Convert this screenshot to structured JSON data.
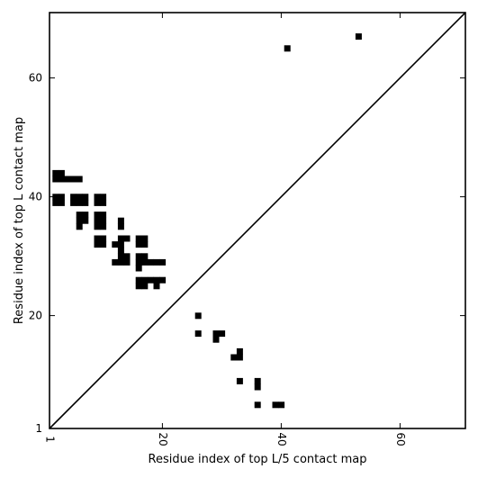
{
  "chart_data": {
    "type": "heatmap",
    "title": "",
    "xlabel": "Residue index of top L/5 contact map",
    "ylabel": "Residue index of top L contact map",
    "xlim": [
      1,
      71
    ],
    "ylim": [
      1,
      71
    ],
    "xticks": [
      1,
      20,
      40,
      60
    ],
    "yticks": [
      1,
      20,
      40,
      60
    ],
    "diagonal": true,
    "grid": false,
    "color": "#000000",
    "upper_triangle_cells": [
      [
        41,
        65
      ],
      [
        53,
        67
      ],
      [
        2,
        43
      ],
      [
        2,
        44
      ],
      [
        3,
        43
      ],
      [
        3,
        44
      ],
      [
        4,
        43
      ],
      [
        5,
        43
      ],
      [
        6,
        43
      ],
      [
        2,
        39
      ],
      [
        2,
        40
      ],
      [
        3,
        39
      ],
      [
        3,
        40
      ],
      [
        5,
        39
      ],
      [
        5,
        40
      ],
      [
        6,
        39
      ],
      [
        6,
        40
      ],
      [
        7,
        39
      ],
      [
        7,
        40
      ],
      [
        9,
        39
      ],
      [
        9,
        40
      ],
      [
        10,
        39
      ],
      [
        10,
        40
      ],
      [
        6,
        36
      ],
      [
        6,
        37
      ],
      [
        7,
        36
      ],
      [
        7,
        37
      ],
      [
        6,
        35
      ],
      [
        9,
        36
      ],
      [
        9,
        37
      ],
      [
        10,
        36
      ],
      [
        10,
        37
      ],
      [
        9,
        35
      ],
      [
        10,
        35
      ],
      [
        13,
        35
      ],
      [
        13,
        36
      ],
      [
        9,
        32
      ],
      [
        9,
        33
      ],
      [
        10,
        32
      ],
      [
        10,
        33
      ],
      [
        12,
        32
      ],
      [
        13,
        32
      ],
      [
        13,
        33
      ],
      [
        14,
        33
      ],
      [
        13,
        30
      ],
      [
        13,
        31
      ],
      [
        16,
        32
      ],
      [
        16,
        33
      ],
      [
        17,
        32
      ],
      [
        17,
        33
      ],
      [
        12,
        29
      ],
      [
        13,
        29
      ],
      [
        14,
        29
      ],
      [
        14,
        30
      ],
      [
        16,
        28
      ],
      [
        16,
        29
      ],
      [
        16,
        30
      ],
      [
        17,
        29
      ],
      [
        17,
        30
      ],
      [
        18,
        29
      ],
      [
        19,
        29
      ],
      [
        20,
        29
      ],
      [
        16,
        25
      ],
      [
        16,
        26
      ],
      [
        17,
        25
      ],
      [
        17,
        26
      ],
      [
        18,
        26
      ],
      [
        19,
        25
      ],
      [
        19,
        26
      ],
      [
        20,
        26
      ]
    ],
    "lower_triangle_cells": [
      [
        26,
        20
      ],
      [
        26,
        17
      ],
      [
        29,
        16
      ],
      [
        29,
        17
      ],
      [
        30,
        17
      ],
      [
        32,
        13
      ],
      [
        33,
        13
      ],
      [
        33,
        14
      ],
      [
        33,
        9
      ],
      [
        36,
        8
      ],
      [
        36,
        9
      ],
      [
        36,
        5
      ],
      [
        39,
        5
      ],
      [
        40,
        5
      ]
    ]
  }
}
